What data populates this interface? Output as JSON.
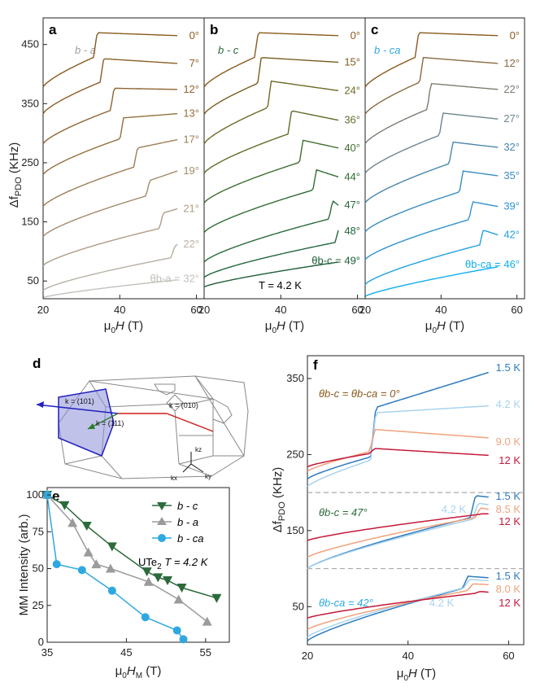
{
  "colors": {
    "b_a": [
      "#8a5a1d",
      "#8a5e25",
      "#8e6533",
      "#94703f",
      "#9c7d55",
      "#a48b6c",
      "#ae9d86",
      "#b8b0a4",
      "#c4c0bb"
    ],
    "b_c": [
      "#8a5a1d",
      "#7a5c1d",
      "#6e6a26",
      "#5e6e2a",
      "#3f6e2f",
      "#2f6e34",
      "#2a6a3b",
      "#22663f",
      "#1f5e38"
    ],
    "b_ca": [
      "#8a5a1d",
      "#8a6a42",
      "#7d7c70",
      "#6e8590",
      "#4a86ac",
      "#3a8dc0",
      "#2f94cf",
      "#22a0e0",
      "#10aef0"
    ],
    "f": {
      "1.5K": "#2d7bc0",
      "4.2K": "#a8d3ee",
      "9.0K": "#f0a27c",
      "8.5K": "#f0a27c",
      "8.0K": "#f0a27c",
      "12K": "#c4193a"
    },
    "e": {
      "b_c": "#2c6a3b",
      "b_a": "#9b9b9b",
      "b_ca": "#2fa8e0"
    },
    "dashes": "#aaaaaa"
  },
  "chart_data": [
    {
      "panel": "a",
      "type": "line",
      "title": "b - a",
      "xlabel": "μ0H (T)",
      "ylabel": "Δf PDO (KHz)",
      "xlim": [
        20,
        62
      ],
      "ylim": [
        20,
        495
      ],
      "xticks": [
        "20",
        "40",
        "60"
      ],
      "yticks": [
        "50",
        "150",
        "250",
        "350",
        "450"
      ],
      "series_labels": [
        "0°",
        "7°",
        "12°",
        "13°",
        "17°",
        "19°",
        "21°",
        "22°",
        "θb-a = 32°"
      ],
      "curves": [
        {
          "angle": "0°",
          "start": 378,
          "jump_field": 33.8,
          "pre": 430,
          "post": 470,
          "end": 465,
          "xmax": 55
        },
        {
          "angle": "7°",
          "start": 333,
          "jump_field": 35.5,
          "pre": 388,
          "post": 426,
          "end": 418,
          "xmax": 55
        },
        {
          "angle": "12°",
          "start": 282,
          "jump_field": 38.2,
          "pre": 340,
          "post": 376,
          "end": 374,
          "xmax": 55
        },
        {
          "angle": "13°",
          "start": 230,
          "jump_field": 40.7,
          "pre": 292,
          "post": 326,
          "end": 333,
          "xmax": 55
        },
        {
          "angle": "17°",
          "start": 176,
          "jump_field": 44.3,
          "pre": 244,
          "post": 275,
          "end": 289,
          "xmax": 55
        },
        {
          "angle": "19°",
          "start": 125,
          "jump_field": 47.5,
          "pre": 195,
          "post": 220,
          "end": 236,
          "xmax": 55
        },
        {
          "angle": "21°",
          "start": 76,
          "jump_field": 51.0,
          "pre": 140,
          "post": 165,
          "end": 172,
          "xmax": 55
        },
        {
          "angle": "22°",
          "start": 34,
          "jump_field": 54.0,
          "pre": 90,
          "post": 108,
          "end": 112,
          "xmax": 55
        },
        {
          "angle": "θb-a = 32°",
          "start": 22,
          "jump_field": null,
          "pre": 52,
          "post": 52,
          "end": 54,
          "xmax": 55
        }
      ]
    },
    {
      "panel": "b",
      "type": "line",
      "title": "b - c",
      "annotation": "T = 4.2 K",
      "xlabel": "μ0H (T)",
      "xlim": [
        20,
        62
      ],
      "ylim": [
        20,
        495
      ],
      "xticks": [
        "20",
        "40",
        "60"
      ],
      "series_labels": [
        "0°",
        "15°",
        "24°",
        "36°",
        "40°",
        "44°",
        "47°",
        "48°",
        "θb-c = 49°"
      ],
      "curves": [
        {
          "angle": "0°",
          "start": 378,
          "jump_field": 33.8,
          "pre": 430,
          "post": 470,
          "end": 465,
          "xmax": 55
        },
        {
          "angle": "15°",
          "start": 332,
          "jump_field": 34.6,
          "pre": 386,
          "post": 428,
          "end": 420,
          "xmax": 55
        },
        {
          "angle": "24°",
          "start": 282,
          "jump_field": 37.2,
          "pre": 345,
          "post": 388,
          "end": 372,
          "xmax": 55
        },
        {
          "angle": "36°",
          "start": 232,
          "jump_field": 42.5,
          "pre": 300,
          "post": 338,
          "end": 322,
          "xmax": 55
        },
        {
          "angle": "40°",
          "start": 182,
          "jump_field": 45.5,
          "pre": 252,
          "post": 288,
          "end": 275,
          "xmax": 55
        },
        {
          "angle": "44°",
          "start": 132,
          "jump_field": 49.0,
          "pre": 205,
          "post": 238,
          "end": 226,
          "xmax": 55
        },
        {
          "angle": "47°",
          "start": 82,
          "jump_field": 53.2,
          "pre": 156,
          "post": 186,
          "end": 178,
          "xmax": 55
        },
        {
          "angle": "48°",
          "start": 56,
          "jump_field": 54.8,
          "pre": 116,
          "post": 138,
          "end": 134,
          "xmax": 55
        },
        {
          "angle": "θb-c = 49°",
          "start": 40,
          "jump_field": null,
          "pre": 82,
          "post": 82,
          "end": 84,
          "xmax": 55
        }
      ]
    },
    {
      "panel": "c",
      "type": "line",
      "title": "b - ca",
      "xlabel": "μ0H (T)",
      "xlim": [
        20,
        62
      ],
      "ylim": [
        20,
        495
      ],
      "xticks": [
        "20",
        "40",
        "60"
      ],
      "series_labels": [
        "0°",
        "12°",
        "22°",
        "27°",
        "32°",
        "35°",
        "39°",
        "42°",
        "θb-ca = 46°"
      ],
      "curves": [
        {
          "angle": "0°",
          "start": 378,
          "jump_field": 33.8,
          "pre": 430,
          "post": 470,
          "end": 465,
          "xmax": 55
        },
        {
          "angle": "12°",
          "start": 332,
          "jump_field": 35.0,
          "pre": 388,
          "post": 428,
          "end": 418,
          "xmax": 55
        },
        {
          "angle": "22°",
          "start": 282,
          "jump_field": 37.0,
          "pre": 342,
          "post": 384,
          "end": 374,
          "xmax": 55
        },
        {
          "angle": "27°",
          "start": 232,
          "jump_field": 40.2,
          "pre": 298,
          "post": 334,
          "end": 324,
          "xmax": 55
        },
        {
          "angle": "32°",
          "start": 182,
          "jump_field": 42.8,
          "pre": 250,
          "post": 285,
          "end": 276,
          "xmax": 55
        },
        {
          "angle": "35°",
          "start": 133,
          "jump_field": 45.5,
          "pre": 202,
          "post": 236,
          "end": 228,
          "xmax": 55
        },
        {
          "angle": "39°",
          "start": 86,
          "jump_field": 48.0,
          "pre": 155,
          "post": 184,
          "end": 176,
          "xmax": 55
        },
        {
          "angle": "42°",
          "start": 44,
          "jump_field": 50.8,
          "pre": 112,
          "post": 136,
          "end": 128,
          "xmax": 55
        },
        {
          "angle": "θb-ca = 46°",
          "start": 24,
          "jump_field": null,
          "pre": 74,
          "post": 74,
          "end": 78,
          "xmax": 55
        }
      ]
    },
    {
      "panel": "e",
      "type": "line",
      "title": "UTe2 T = 4.2 K",
      "xlabel": "μ0HM (T)",
      "ylabel": "MM Intensity (arb.)",
      "xlim": [
        35,
        58
      ],
      "ylim": [
        0,
        105
      ],
      "xticks": [
        "35",
        "45",
        "55"
      ],
      "yticks": [
        "0",
        "25",
        "50",
        "75",
        "100"
      ],
      "series": [
        {
          "name": "b - c",
          "marker": "triangle-down",
          "x": [
            35,
            37.2,
            40.0,
            43.2,
            47.6,
            49.0,
            50.2,
            52.0,
            56.4
          ],
          "y": [
            100,
            93,
            79,
            65,
            48,
            44,
            42,
            37,
            30
          ]
        },
        {
          "name": "b - a",
          "marker": "triangle-up",
          "x": [
            35,
            38.2,
            40.2,
            41.2,
            43.0,
            47.8,
            51.6,
            55.2
          ],
          "y": [
            100,
            81,
            61,
            53,
            50,
            41,
            29,
            14
          ]
        },
        {
          "name": "b - ca",
          "marker": "circle",
          "x": [
            35,
            36.2,
            39.4,
            43.2,
            47.4,
            51.4,
            52.2
          ],
          "y": [
            100,
            53,
            49,
            35,
            17,
            8,
            2
          ]
        }
      ]
    },
    {
      "panel": "f",
      "type": "line",
      "xlabel": "μ0H (T)",
      "ylabel": "Δf PDO (KHz)",
      "xlim": [
        20,
        63
      ],
      "ylim": [
        0,
        380
      ],
      "xticks": [
        "20",
        "40",
        "60"
      ],
      "yticks": [
        "50",
        "150",
        "250",
        "350"
      ],
      "dashed_lines": [
        200,
        100
      ],
      "groups": [
        {
          "label": "θb-c = θb-ca = 0°",
          "curves": [
            {
              "T": "1.5 K",
              "start": 218,
              "jump_field": 33.2,
              "pre": 248,
              "post": 312,
              "end": 358
            },
            {
              "T": "4.2 K",
              "start": 208,
              "jump_field": 33.2,
              "pre": 244,
              "post": 305,
              "end": 314
            },
            {
              "T": "9.0 K",
              "start": 228,
              "jump_field": 33.0,
              "pre": 255,
              "post": 283,
              "end": 272
            },
            {
              "T": "12 K",
              "start": 234,
              "jump_field": 33.0,
              "pre": 252,
              "post": 258,
              "end": 249
            }
          ]
        },
        {
          "label": "θb-c = 47°",
          "curves": [
            {
              "T": "1.5 K",
              "start": 100,
              "jump_field": 53.0,
              "pre": 168,
              "post": 196,
              "end": 194
            },
            {
              "T": "4.2 K",
              "start": 100,
              "jump_field": 53.5,
              "pre": 166,
              "post": 186,
              "end": 184
            },
            {
              "T": "8.5 K",
              "start": 115,
              "jump_field": 54.0,
              "pre": 168,
              "post": 180,
              "end": 178
            },
            {
              "T": "12 K",
              "start": 137,
              "jump_field": 55.0,
              "pre": 172,
              "post": 172,
              "end": 172
            }
          ]
        },
        {
          "label": "θb-ca = 42°",
          "curves": [
            {
              "T": "1.5 K",
              "start": 5,
              "jump_field": 51.5,
              "pre": 75,
              "post": 90,
              "end": 88
            },
            {
              "T": "4.2 K",
              "start": 10,
              "jump_field": 51.8,
              "pre": 76,
              "post": 86,
              "end": 84
            },
            {
              "T": "8.0 K",
              "start": 20,
              "jump_field": 52.5,
              "pre": 72,
              "post": 80,
              "end": 79
            },
            {
              "T": "12 K",
              "start": 35,
              "jump_field": 54.0,
              "pre": 68,
              "post": 70,
              "end": 69
            }
          ]
        }
      ]
    }
  ],
  "labels": {
    "panel_a": "a",
    "panel_b": "b",
    "panel_c": "c",
    "panel_d": "d",
    "panel_e": "e",
    "panel_f": "f",
    "title_a": "b - a",
    "title_b": "b - c",
    "title_c": "b - ca",
    "temp_b": "T = 4.2 K",
    "ylabel_top": "Δf",
    "ylabel_top_sub": "PDO",
    "ylabel_top_unit": " (KHz)",
    "xlabel_mu": "μ",
    "xlabel_sub0": "0",
    "xlabel_H": "H",
    "xlabel_T": " (T)",
    "xlabel_e_sub": "M",
    "e_ylabel": "MM Intensity (arb.)",
    "e_title_1": "UTe",
    "e_title_2": "2",
    "e_title_3": "T = 4.2 K",
    "legend_bc": "b - c",
    "legend_ba": "b - a",
    "legend_bca": "b - ca",
    "k101": "k = (101)",
    "k010": "k = (010)",
    "k111": "k = (111)",
    "kz": "kz",
    "kx": "kx",
    "ky": "ky",
    "f_group1": "θb-c = θb-ca = 0°",
    "f_group2": "θb-c = 47°",
    "f_group3": "θb-ca = 42°",
    "f_T_top": [
      "1.5 K",
      "4.2 K",
      "9.0 K",
      "12 K"
    ],
    "f_T_mid": [
      "1.5 K",
      "8.5 K",
      "12 K"
    ],
    "f_T_mid_42": "4.2 K",
    "f_T_bot": [
      "1.5 K",
      "8.0 K",
      "12 K"
    ],
    "f_T_bot_42": "4.2 K"
  }
}
